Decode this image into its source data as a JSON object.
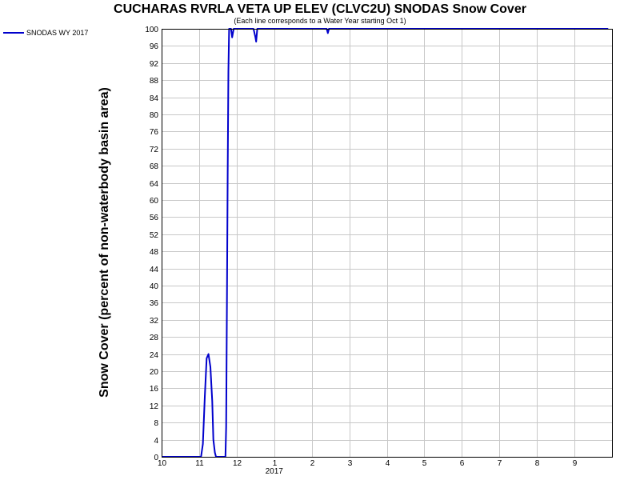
{
  "chart_data": {
    "type": "line",
    "title": "CUCHARAS RVRLA VETA UP ELEV (CLVC2U) SNODAS Snow Cover",
    "subtitle": "(Each line corresponds to a Water Year starting Oct 1)",
    "xlabel": "",
    "ylabel": "Snow Cover (percent of non-waterbody basin area)",
    "ylim": [
      0,
      100
    ],
    "xlim": [
      0,
      12
    ],
    "y_ticks": [
      0,
      4,
      8,
      12,
      16,
      20,
      24,
      28,
      32,
      36,
      40,
      44,
      48,
      52,
      56,
      60,
      64,
      68,
      72,
      76,
      80,
      84,
      88,
      92,
      96,
      100
    ],
    "x_ticks": [
      {
        "x": 0,
        "label": "10"
      },
      {
        "x": 1,
        "label": "11"
      },
      {
        "x": 2,
        "label": "12"
      },
      {
        "x": 3,
        "label": "1"
      },
      {
        "x": 4,
        "label": "2"
      },
      {
        "x": 5,
        "label": "3"
      },
      {
        "x": 6,
        "label": "4"
      },
      {
        "x": 7,
        "label": "5"
      },
      {
        "x": 8,
        "label": "6"
      },
      {
        "x": 9,
        "label": "7"
      },
      {
        "x": 10,
        "label": "8"
      },
      {
        "x": 11,
        "label": "9"
      }
    ],
    "year_label": "2017",
    "year_label_x": 3,
    "grid": true,
    "legend": "top-left",
    "series": [
      {
        "name": "SNODAS WY 2017",
        "color": "#0000cc",
        "x": [
          0,
          1.05,
          1.1,
          1.15,
          1.2,
          1.25,
          1.3,
          1.35,
          1.38,
          1.42,
          1.45,
          1.5,
          1.6,
          1.7,
          1.72,
          1.74,
          1.76,
          1.78,
          1.8,
          1.82,
          1.85,
          1.88,
          1.92,
          1.96,
          2.0,
          2.05,
          2.1,
          2.2,
          2.3,
          2.45,
          2.5,
          2.52,
          2.55,
          2.6,
          2.8,
          3.0,
          3.5,
          3.8,
          4.4,
          4.43,
          4.46,
          5.0,
          6.0,
          7.0,
          8.0,
          9.0,
          10.0,
          11.0,
          11.9
        ],
        "values": [
          0,
          0,
          3,
          14,
          23,
          24,
          21,
          13,
          4,
          1,
          0,
          0,
          0,
          0,
          7,
          34,
          66,
          90,
          100,
          100,
          100,
          98,
          100,
          100,
          100,
          100,
          100,
          100,
          100,
          100,
          98,
          97,
          100,
          100,
          100,
          100,
          100,
          100,
          100,
          99,
          100,
          100,
          100,
          100,
          100,
          100,
          100,
          100,
          100
        ]
      }
    ]
  }
}
